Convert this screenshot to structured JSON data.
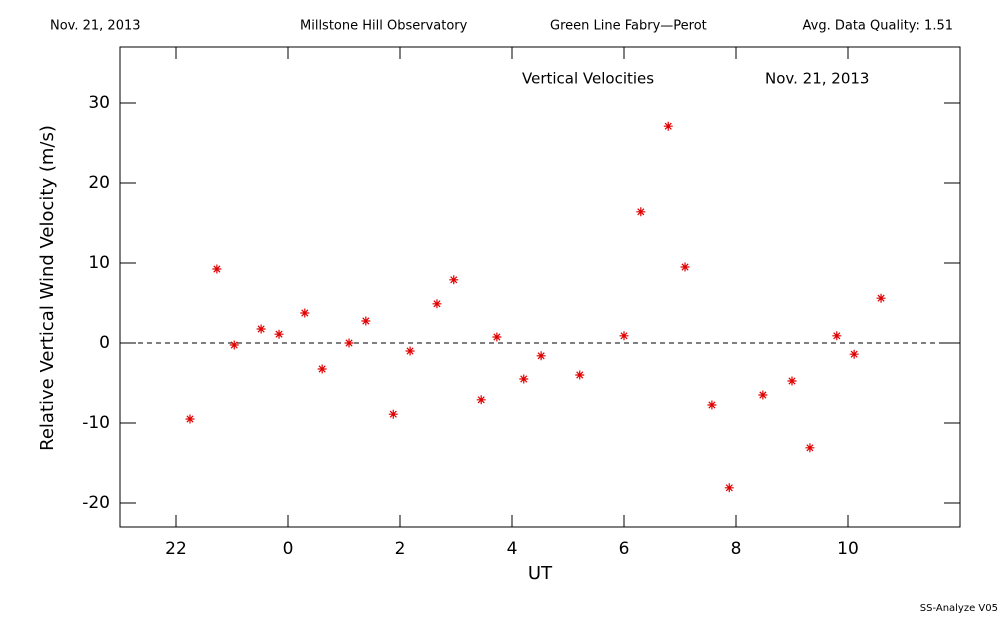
{
  "chart_data": {
    "type": "scatter",
    "header": [
      "Nov. 21, 2013",
      "Millstone Hill Observatory",
      "Green Line Fabry—Perot",
      "Avg. Data Quality: 1.51"
    ],
    "title": "Vertical Velocities",
    "subtitle": "Nov. 21, 2013",
    "x_label": "UT",
    "y_label": "Relative Vertical Wind Velocity (m/s)",
    "footer": "SS-Analyze V05",
    "color": "#e00000",
    "reference_line": 0,
    "xlim": [
      21,
      36
    ],
    "xticks": [
      22,
      {
        "value": 24,
        "label": "0"
      },
      {
        "value": 26,
        "label": "2"
      },
      {
        "value": 28,
        "label": "4"
      },
      {
        "value": 30,
        "label": "6"
      },
      {
        "value": 32,
        "label": "8"
      },
      {
        "value": 34,
        "label": "10"
      }
    ],
    "ylim": [
      -23,
      37
    ],
    "yticks": [
      -20,
      -10,
      0,
      10,
      20,
      30
    ],
    "x": [
      22.25,
      22.73,
      23.04,
      23.52,
      23.84,
      24.3,
      24.61,
      25.09,
      25.39,
      25.88,
      26.18,
      26.66,
      26.96,
      27.45,
      27.73,
      28.21,
      28.52,
      29.21,
      30.0,
      30.3,
      30.79,
      31.09,
      31.57,
      31.88,
      32.48,
      33.0,
      33.32,
      33.8,
      34.11,
      34.59
    ],
    "values": [
      -9.5,
      9.25,
      -0.25,
      1.75,
      1.1,
      3.75,
      -3.25,
      0,
      2.75,
      -8.9,
      -1.0,
      4.9,
      7.9,
      -7.1,
      0.75,
      -4.5,
      -1.6,
      -4.0,
      0.9,
      16.4,
      27.1,
      9.5,
      -7.75,
      -18.1,
      -6.5,
      -4.75,
      -13.1,
      0.9,
      -1.4,
      5.6
    ]
  }
}
